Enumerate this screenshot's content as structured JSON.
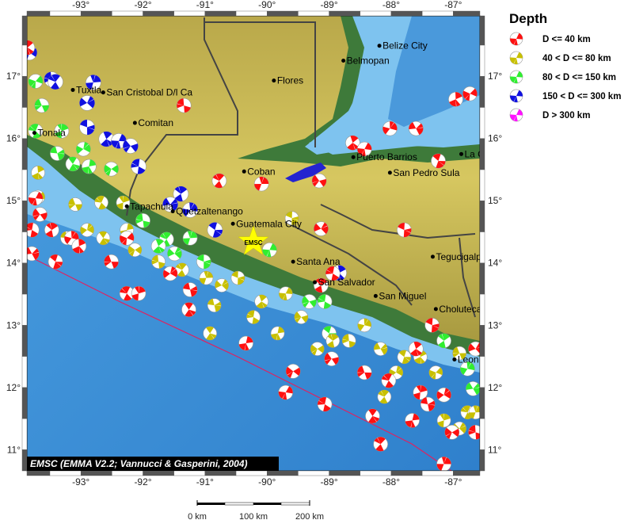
{
  "map": {
    "lon_range": [
      -93.87,
      -86.57
    ],
    "lat_range": [
      10.66,
      17.97
    ],
    "lon_ticks": [
      -93,
      -92,
      -91,
      -90,
      -89,
      -88,
      -87
    ],
    "lat_ticks": [
      11,
      12,
      13,
      14,
      15,
      16,
      17
    ],
    "lon_tick_labels": [
      "-93°",
      "-92°",
      "-91°",
      "-90°",
      "-89°",
      "-88°",
      "-87°"
    ],
    "lat_tick_labels": [
      "11°",
      "12°",
      "13°",
      "14°",
      "15°",
      "16°",
      "17°"
    ],
    "colors": {
      "deep_ocean": "#3d8fd6",
      "shelf": "#7ec3ef",
      "lowland": "#3e7a3a",
      "highland": "#c9b84a",
      "border": "#444444",
      "trench": "#e02060"
    }
  },
  "legend": {
    "title": "Depth",
    "items": [
      {
        "label": "D <= 40 km",
        "color": "#ff1010"
      },
      {
        "label": "40 < D <= 80 km",
        "color": "#c8c000"
      },
      {
        "label": "80 < D <= 150 km",
        "color": "#30ee30"
      },
      {
        "label": "150 < D <= 300 km",
        "color": "#1010e0"
      },
      {
        "label": "D > 300 km",
        "color": "#ff10ff"
      }
    ]
  },
  "credit": "EMSC (EMMA V2.2; Vannucci & Gasperini, 2004)",
  "epicenter": {
    "label": "EMSC",
    "lon": -90.22,
    "lat": 14.34,
    "color": "#ffff00"
  },
  "scale_bar": {
    "labels": [
      "0 km",
      "100 km",
      "200 km"
    ]
  },
  "cities": [
    {
      "name": "Tuxtla",
      "lon": -93.13,
      "lat": 16.78
    },
    {
      "name": "San Cristobal D/l Ca",
      "lon": -92.64,
      "lat": 16.74
    },
    {
      "name": "Comitan",
      "lon": -92.13,
      "lat": 16.25
    },
    {
      "name": "Tonala",
      "lon": -93.75,
      "lat": 16.09
    },
    {
      "name": "Flores",
      "lon": -89.89,
      "lat": 16.93
    },
    {
      "name": "Belize City",
      "lon": -88.19,
      "lat": 17.49
    },
    {
      "name": "Belmopan",
      "lon": -88.77,
      "lat": 17.25
    },
    {
      "name": "Coban",
      "lon": -90.37,
      "lat": 15.47
    },
    {
      "name": "Tapachula",
      "lon": -92.26,
      "lat": 14.91
    },
    {
      "name": "Quetzaltenango",
      "lon": -91.52,
      "lat": 14.83
    },
    {
      "name": "Guatemala City",
      "lon": -90.55,
      "lat": 14.63
    },
    {
      "name": "Puerto Barrios",
      "lon": -88.61,
      "lat": 15.7
    },
    {
      "name": "San Pedro Sula",
      "lon": -88.02,
      "lat": 15.45
    },
    {
      "name": "La Ceiba",
      "lon": -86.87,
      "lat": 15.75
    },
    {
      "name": "Santa Ana",
      "lon": -89.58,
      "lat": 14.02
    },
    {
      "name": "San Salvador",
      "lon": -89.23,
      "lat": 13.69
    },
    {
      "name": "San Miguel",
      "lon": -88.25,
      "lat": 13.47
    },
    {
      "name": "Tegucigalpa",
      "lon": -87.33,
      "lat": 14.1
    },
    {
      "name": "Choluteca",
      "lon": -87.28,
      "lat": 13.26
    },
    {
      "name": "Leon",
      "lon": -86.98,
      "lat": 12.45
    }
  ],
  "events": [
    [
      -93.83,
      17.38,
      3
    ],
    [
      -93.47,
      16.95,
      3
    ],
    [
      -93.41,
      16.91,
      3
    ],
    [
      -92.8,
      16.9,
      3
    ],
    [
      -92.9,
      16.57,
      3
    ],
    [
      -92.9,
      16.18,
      3
    ],
    [
      -92.59,
      15.99,
      3
    ],
    [
      -92.39,
      15.96,
      3
    ],
    [
      -92.2,
      15.88,
      3
    ],
    [
      -92.07,
      15.55,
      3
    ],
    [
      -91.39,
      15.11,
      3
    ],
    [
      -91.24,
      14.85,
      3
    ],
    [
      -91.56,
      14.94,
      3
    ],
    [
      -90.84,
      14.53,
      3
    ],
    [
      -88.84,
      13.84,
      3
    ],
    [
      -93.73,
      16.92,
      2
    ],
    [
      -93.63,
      16.53,
      2
    ],
    [
      -93.73,
      16.12,
      2
    ],
    [
      -93.31,
      16.12,
      2
    ],
    [
      -92.96,
      15.83,
      2
    ],
    [
      -93.38,
      15.76,
      2
    ],
    [
      -93.13,
      15.59,
      2
    ],
    [
      -92.87,
      15.55,
      2
    ],
    [
      -92.51,
      15.51,
      2
    ],
    [
      -92.0,
      14.68,
      2
    ],
    [
      -91.62,
      14.38,
      2
    ],
    [
      -91.24,
      14.4,
      2
    ],
    [
      -91.49,
      14.15,
      2
    ],
    [
      -91.02,
      14.02,
      2
    ],
    [
      -91.75,
      14.27,
      2
    ],
    [
      -89.96,
      14.21,
      2
    ],
    [
      -89.32,
      13.38,
      2
    ],
    [
      -89.07,
      13.38,
      2
    ],
    [
      -87.15,
      12.75,
      2
    ],
    [
      -86.77,
      12.3,
      2
    ],
    [
      -86.68,
      11.98,
      2
    ],
    [
      -89.0,
      12.87,
      2
    ],
    [
      -93.69,
      15.45,
      1
    ],
    [
      -93.69,
      15.06,
      1
    ],
    [
      -93.09,
      14.94,
      1
    ],
    [
      -92.67,
      14.97,
      1
    ],
    [
      -92.32,
      14.97,
      1
    ],
    [
      -92.9,
      14.53,
      1
    ],
    [
      -93.22,
      14.4,
      1
    ],
    [
      -92.64,
      14.4,
      1
    ],
    [
      -92.26,
      14.53,
      1
    ],
    [
      -92.13,
      14.21,
      1
    ],
    [
      -91.75,
      14.02,
      1
    ],
    [
      -91.37,
      13.89,
      1
    ],
    [
      -90.98,
      13.76,
      1
    ],
    [
      -90.73,
      13.64,
      1
    ],
    [
      -90.47,
      13.76,
      1
    ],
    [
      -90.09,
      13.38,
      1
    ],
    [
      -89.7,
      13.51,
      1
    ],
    [
      -89.45,
      13.13,
      1
    ],
    [
      -90.22,
      13.13,
      1
    ],
    [
      -88.94,
      12.75,
      1
    ],
    [
      -88.43,
      13.0,
      1
    ],
    [
      -88.17,
      12.62,
      1
    ],
    [
      -87.79,
      12.49,
      1
    ],
    [
      -87.53,
      12.49,
      1
    ],
    [
      -87.28,
      12.24,
      1
    ],
    [
      -86.9,
      12.55,
      1
    ],
    [
      -86.77,
      11.6,
      1
    ],
    [
      -87.15,
      11.47,
      1
    ],
    [
      -87.92,
      12.24,
      1
    ],
    [
      -90.85,
      13.32,
      1
    ],
    [
      -90.92,
      12.87,
      1
    ],
    [
      -89.83,
      12.87,
      1
    ],
    [
      -89.19,
      12.62,
      1
    ],
    [
      -88.68,
      12.75,
      1
    ],
    [
      -88.11,
      11.85,
      1
    ],
    [
      -86.64,
      11.6,
      1
    ],
    [
      -86.9,
      11.34,
      1
    ],
    [
      -89.6,
      14.72,
      1
    ],
    [
      -93.86,
      17.46,
      0
    ],
    [
      -93.73,
      15.04,
      0
    ],
    [
      -93.66,
      14.78,
      0
    ],
    [
      -93.79,
      14.53,
      0
    ],
    [
      -93.47,
      14.53,
      0
    ],
    [
      -93.15,
      14.4,
      0
    ],
    [
      -93.79,
      14.15,
      0
    ],
    [
      -93.41,
      14.02,
      0
    ],
    [
      -93.03,
      14.27,
      0
    ],
    [
      -92.26,
      14.4,
      0
    ],
    [
      -92.51,
      14.02,
      0
    ],
    [
      -92.26,
      13.51,
      0
    ],
    [
      -92.07,
      13.51,
      0
    ],
    [
      -91.56,
      13.83,
      0
    ],
    [
      -91.24,
      13.57,
      0
    ],
    [
      -91.26,
      13.25,
      0
    ],
    [
      -90.34,
      12.71,
      0
    ],
    [
      -89.58,
      12.26,
      0
    ],
    [
      -91.34,
      16.53,
      0
    ],
    [
      -90.77,
      15.32,
      0
    ],
    [
      -90.09,
      15.27,
      0
    ],
    [
      -89.13,
      14.55,
      0
    ],
    [
      -87.79,
      14.53,
      0
    ],
    [
      -88.62,
      15.93,
      0
    ],
    [
      -88.43,
      15.83,
      0
    ],
    [
      -89.16,
      15.32,
      0
    ],
    [
      -88.94,
      13.83,
      0
    ],
    [
      -89.13,
      13.64,
      0
    ],
    [
      -88.02,
      16.16,
      0
    ],
    [
      -87.6,
      16.16,
      0
    ],
    [
      -87.24,
      15.64,
      0
    ],
    [
      -86.96,
      16.63,
      0
    ],
    [
      -86.73,
      16.72,
      0
    ],
    [
      -88.43,
      12.24,
      0
    ],
    [
      -88.04,
      12.11,
      0
    ],
    [
      -87.53,
      11.92,
      0
    ],
    [
      -87.15,
      11.88,
      0
    ],
    [
      -87.41,
      11.73,
      0
    ],
    [
      -88.3,
      11.54,
      0
    ],
    [
      -87.66,
      11.47,
      0
    ],
    [
      -87.02,
      11.28,
      0
    ],
    [
      -86.64,
      11.28,
      0
    ],
    [
      -88.17,
      11.09,
      0
    ],
    [
      -87.15,
      10.77,
      0
    ],
    [
      -86.64,
      12.62,
      0
    ],
    [
      -87.34,
      13.0,
      0
    ],
    [
      -87.6,
      12.62,
      0
    ],
    [
      -89.7,
      11.92,
      0
    ],
    [
      -88.96,
      12.46,
      0
    ],
    [
      -89.07,
      11.73,
      0
    ]
  ]
}
